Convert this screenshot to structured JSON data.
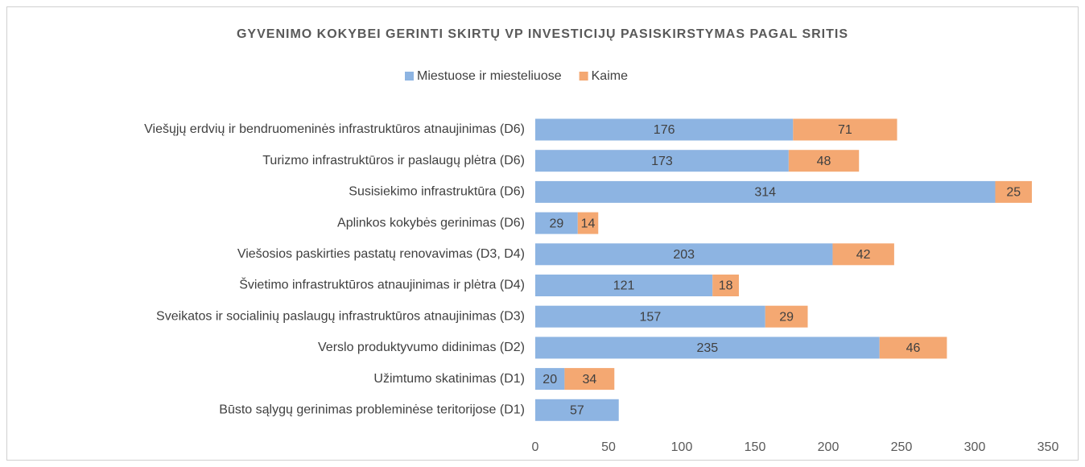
{
  "chart_data": {
    "type": "stacked_bar_horizontal",
    "title": "GYVENIMO KOKYBEI GERINTI SKIRTŲ VP INVESTICIJŲ PASISKIRSTYMAS PAGAL SRITIS",
    "categories": [
      "Viešųjų erdvių ir bendruomeninės infrastruktūros atnaujinimas (D6)",
      "Turizmo infrastruktūros ir paslaugų plėtra (D6)",
      "Susisiekimo infrastruktūra (D6)",
      "Aplinkos kokybės gerinimas (D6)",
      "Viešosios paskirties pastatų renovavimas (D3, D4)",
      "Švietimo infrastruktūros atnaujinimas ir plėtra (D4)",
      "Sveikatos ir socialinių paslaugų infrastruktūros atnaujinimas (D3)",
      "Verslo produktyvumo didinimas (D2)",
      "Užimtumo skatinimas (D1)",
      "Būsto sąlygų gerinimas probleminėse teritorijose (D1)"
    ],
    "series": [
      {
        "name": "Miestuose ir miesteliuose",
        "color": "#8db4e2",
        "values": [
          176,
          173,
          314,
          29,
          203,
          121,
          157,
          235,
          20,
          57
        ]
      },
      {
        "name": "Kaime",
        "color": "#f4a872",
        "values": [
          71,
          48,
          25,
          14,
          42,
          18,
          29,
          46,
          34,
          null
        ]
      }
    ],
    "xlim": [
      0,
      350
    ],
    "xticks": [
      0,
      50,
      100,
      150,
      200,
      250,
      300,
      350
    ],
    "grid": false,
    "legend": "top"
  }
}
